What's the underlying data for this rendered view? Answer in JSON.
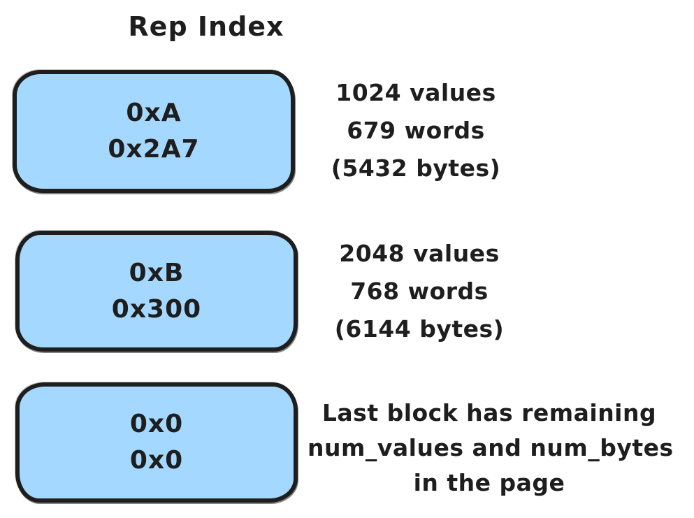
{
  "title": "Rep Index",
  "colors": {
    "background": "#ffffff",
    "block_fill": "#a5d8ff",
    "stroke": "#1e1e1e",
    "text": "#1e1e1e"
  },
  "blocks": [
    {
      "lines": [
        "0xA",
        "0x2A7"
      ],
      "annotation": [
        "1024 values",
        "679 words",
        "(5432 bytes)"
      ]
    },
    {
      "lines": [
        "0xB",
        "0x300"
      ],
      "annotation": [
        "2048 values",
        "768 words",
        "(6144 bytes)"
      ]
    },
    {
      "lines": [
        "0x0",
        "0x0"
      ],
      "annotation": [
        "Last block has remaining",
        "num_values and num_bytes",
        "in the page"
      ]
    }
  ]
}
